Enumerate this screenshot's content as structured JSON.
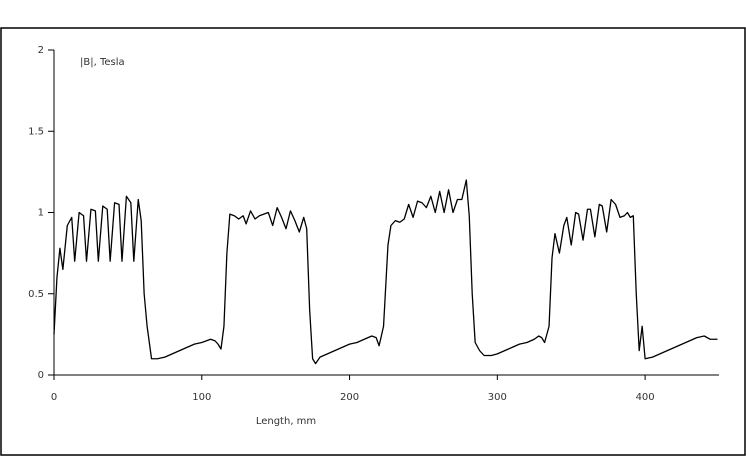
{
  "chart_data": {
    "type": "line",
    "annotation": "|B|, Tesla",
    "x_label": "Length, mm",
    "x": [
      0,
      2,
      4,
      6,
      9,
      12,
      14,
      17,
      20,
      22,
      25,
      28,
      30,
      33,
      36,
      38,
      41,
      44,
      46,
      49,
      52,
      54,
      57,
      59,
      61,
      63,
      66,
      70,
      75,
      80,
      85,
      90,
      95,
      100,
      103,
      106,
      109,
      111,
      113,
      115,
      117,
      119,
      122,
      125,
      128,
      130,
      133,
      136,
      139,
      142,
      145,
      148,
      151,
      154,
      157,
      160,
      163,
      166,
      169,
      171,
      173,
      175,
      177,
      180,
      185,
      190,
      195,
      200,
      205,
      210,
      215,
      218,
      220,
      223,
      226,
      228,
      231,
      234,
      237,
      240,
      243,
      246,
      249,
      252,
      255,
      258,
      261,
      264,
      267,
      270,
      273,
      276,
      279,
      281,
      283,
      285,
      288,
      291,
      296,
      300,
      305,
      310,
      315,
      320,
      325,
      328,
      330,
      332,
      335,
      337,
      339,
      342,
      345,
      347,
      350,
      353,
      355,
      358,
      361,
      363,
      366,
      369,
      371,
      374,
      377,
      380,
      383,
      386,
      388,
      390,
      392,
      394,
      396,
      398,
      400,
      405,
      410,
      415,
      420,
      425,
      430,
      435,
      440,
      444,
      449
    ],
    "series": [
      {
        "name": "B",
        "color": "#000000",
        "values": [
          0.25,
          0.6,
          0.78,
          0.65,
          0.92,
          0.97,
          0.7,
          1.0,
          0.98,
          0.7,
          1.02,
          1.01,
          0.7,
          1.04,
          1.02,
          0.7,
          1.06,
          1.05,
          0.7,
          1.1,
          1.06,
          0.7,
          1.08,
          0.95,
          0.5,
          0.3,
          0.1,
          0.1,
          0.11,
          0.13,
          0.15,
          0.17,
          0.19,
          0.2,
          0.21,
          0.22,
          0.21,
          0.19,
          0.16,
          0.3,
          0.75,
          0.99,
          0.98,
          0.96,
          0.98,
          0.93,
          1.01,
          0.96,
          0.98,
          0.99,
          1.0,
          0.92,
          1.03,
          0.97,
          0.9,
          1.01,
          0.95,
          0.88,
          0.97,
          0.9,
          0.4,
          0.1,
          0.07,
          0.11,
          0.13,
          0.15,
          0.17,
          0.19,
          0.2,
          0.22,
          0.24,
          0.23,
          0.18,
          0.3,
          0.8,
          0.92,
          0.95,
          0.94,
          0.96,
          1.05,
          0.97,
          1.07,
          1.06,
          1.03,
          1.1,
          1.0,
          1.13,
          1.0,
          1.14,
          1.0,
          1.08,
          1.08,
          1.2,
          0.98,
          0.5,
          0.2,
          0.15,
          0.12,
          0.12,
          0.13,
          0.15,
          0.17,
          0.19,
          0.2,
          0.22,
          0.24,
          0.23,
          0.2,
          0.3,
          0.72,
          0.87,
          0.75,
          0.92,
          0.97,
          0.8,
          1.0,
          0.99,
          0.83,
          1.02,
          1.02,
          0.85,
          1.05,
          1.04,
          0.88,
          1.08,
          1.05,
          0.97,
          0.98,
          1.0,
          0.97,
          0.98,
          0.5,
          0.15,
          0.3,
          0.1,
          0.11,
          0.13,
          0.15,
          0.17,
          0.19,
          0.21,
          0.23,
          0.24,
          0.22,
          0.22
        ]
      }
    ],
    "xlim": [
      0,
      450
    ],
    "ylim": [
      0,
      2
    ],
    "xticks": [
      0,
      100,
      200,
      300,
      400
    ],
    "yticks": [
      0,
      0.5,
      1,
      1.5,
      2
    ]
  }
}
